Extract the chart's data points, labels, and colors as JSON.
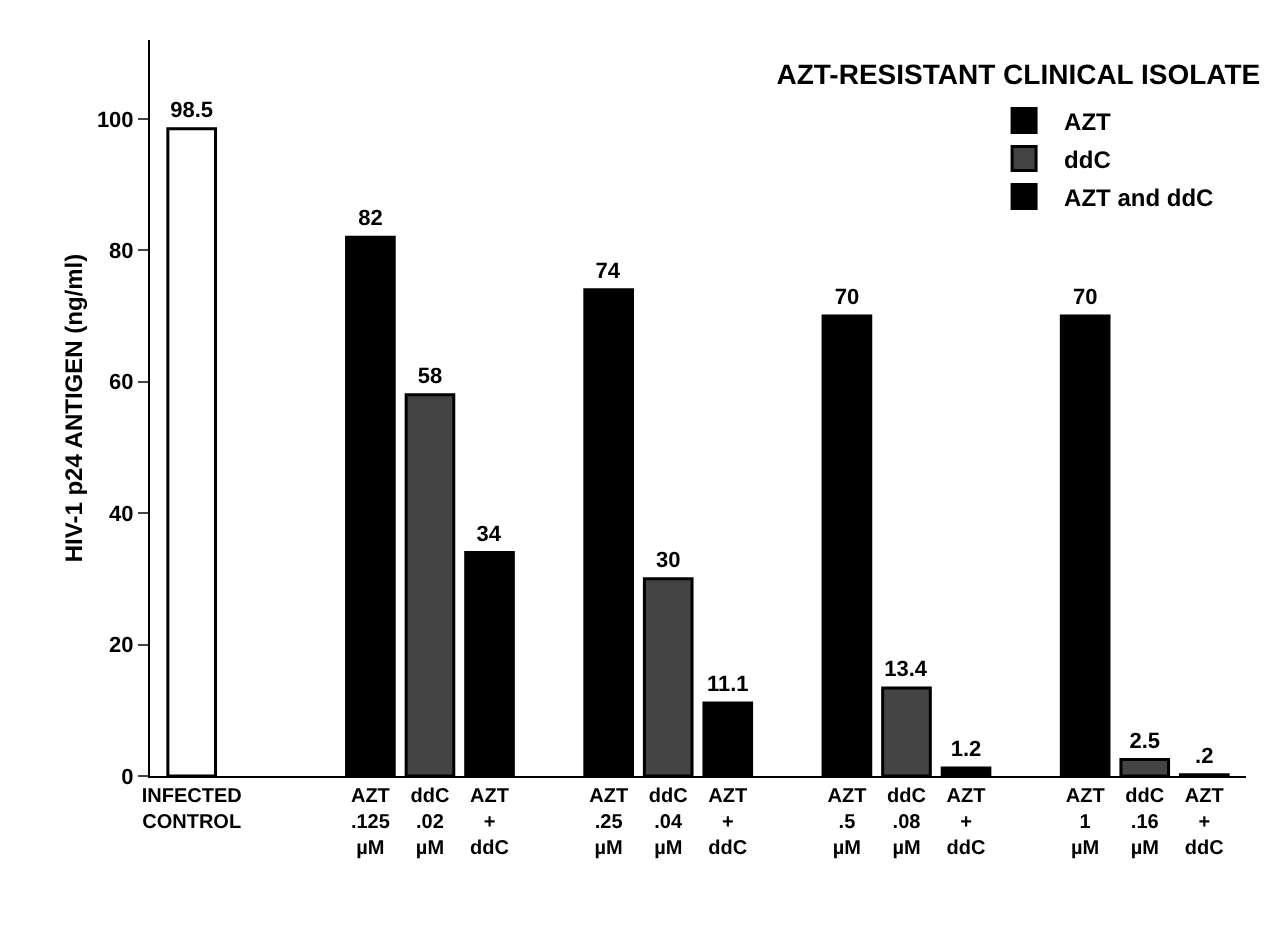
{
  "chart_data": {
    "type": "bar",
    "title": "AZT-RESISTANT CLINICAL ISOLATE",
    "ylabel": "HIV-1 p24 ANTIGEN (ng/ml)",
    "categories": [
      "INFECTED CONTROL",
      null,
      null,
      "AZT .125 µM",
      "ddC .02 µM",
      "AZT + ddC",
      null,
      "AZT .25 µM",
      "ddC .04 µM",
      "AZT + ddC",
      null,
      "AZT .5 µM",
      "ddC .08 µM",
      "AZT + ddC",
      null,
      "AZT 1 µM",
      "ddC .16 µM",
      "AZT + ddC"
    ],
    "series": [
      {
        "color": "#ffffff",
        "values": [
          98.5,
          null,
          null,
          null,
          null,
          null,
          null,
          null,
          null,
          null,
          null,
          null,
          null,
          null,
          null,
          null,
          null,
          null
        ],
        "value_labels": [
          "98.5",
          null,
          null,
          null,
          null,
          null,
          null,
          null,
          null,
          null,
          null,
          null,
          null,
          null,
          null,
          null,
          null,
          null
        ]
      },
      {
        "name": "AZT",
        "color": "#000000",
        "values": [
          null,
          null,
          null,
          82,
          null,
          null,
          null,
          74,
          null,
          null,
          null,
          70,
          null,
          null,
          null,
          70,
          null,
          null
        ],
        "value_labels": [
          null,
          null,
          null,
          "82",
          null,
          null,
          null,
          "74",
          null,
          null,
          null,
          "70",
          null,
          null,
          null,
          "70",
          null,
          null
        ]
      },
      {
        "name": "ddC",
        "color": "#444444",
        "values": [
          null,
          null,
          null,
          null,
          58,
          null,
          null,
          null,
          30,
          null,
          null,
          null,
          13.4,
          null,
          null,
          null,
          2.5,
          null
        ],
        "value_labels": [
          null,
          null,
          null,
          null,
          "58",
          null,
          null,
          null,
          "30",
          null,
          null,
          null,
          "13.4",
          null,
          null,
          null,
          "2.5",
          null
        ]
      },
      {
        "name": "AZT and ddC",
        "color": "#000000",
        "values": [
          null,
          null,
          null,
          null,
          null,
          34,
          null,
          null,
          null,
          11.1,
          null,
          null,
          null,
          1.2,
          null,
          null,
          null,
          0.2
        ],
        "value_labels": [
          null,
          null,
          null,
          null,
          null,
          "34",
          null,
          null,
          null,
          "11.1",
          null,
          null,
          null,
          "1.2",
          null,
          null,
          null,
          ".2"
        ]
      }
    ],
    "ylim": [
      0,
      112
    ],
    "yticks": [
      0,
      20,
      40,
      60,
      80,
      100
    ],
    "grid": false,
    "legend": "top right"
  }
}
